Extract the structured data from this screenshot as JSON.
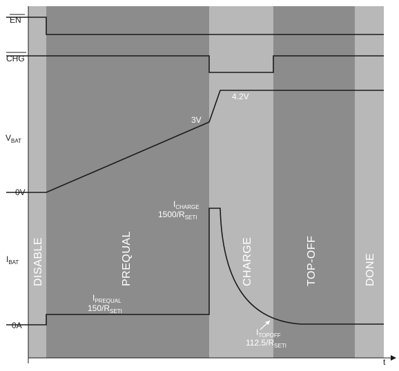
{
  "signals": {
    "en": "EN",
    "chg": "CHG",
    "vbat_main": "V",
    "vbat_sub": "BAT",
    "zero_v": "0V",
    "ibat_main": "I",
    "ibat_sub": "BAT",
    "zero_a": "0A",
    "time_axis": "t"
  },
  "phases": {
    "disable": "DISABLE",
    "prequal": "PREQUAL",
    "charge": "CHARGE",
    "topoff": "TOP-OFF",
    "done": "DONE"
  },
  "annotations": {
    "v_3v": "3V",
    "v_42v": "4.2V",
    "iprequal_main": "I",
    "iprequal_sub": "PREQUAL",
    "iprequal_formula_main": "150/R",
    "iprequal_formula_sub": "SETI",
    "icharge_main": "I",
    "icharge_sub": "CHARGE",
    "icharge_formula_main": "1500/R",
    "icharge_formula_sub": "SETI",
    "itopoff_main": "I",
    "itopoff_sub": "TOPOFF",
    "itopoff_formula_main": "112.5/R",
    "itopoff_formula_sub": "SETI"
  },
  "colors": {
    "disable_band": "#b8b8b8",
    "prequal_band": "#8c8c8c",
    "charge_band": "#b8b8b8",
    "topoff_band": "#8c8c8c",
    "done_band": "#b8b8b8",
    "signal": "#1a1a1a"
  }
}
